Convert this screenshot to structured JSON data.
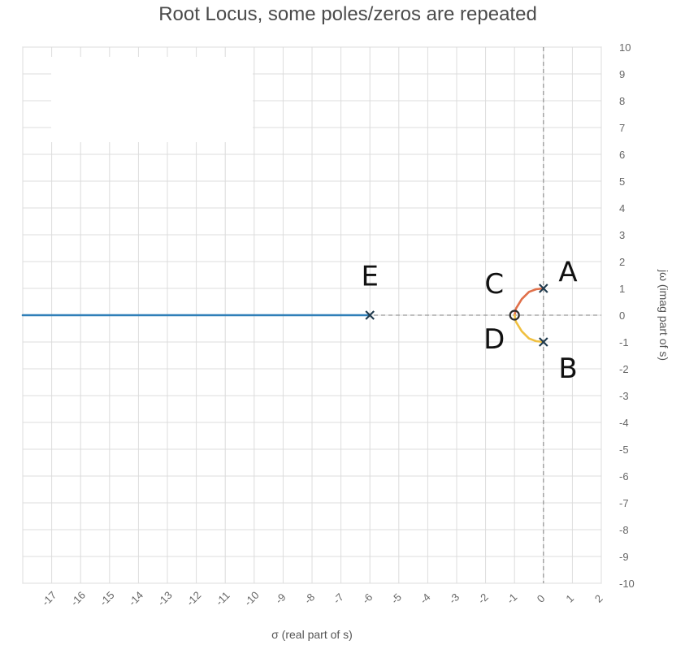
{
  "chart_data": {
    "type": "scatter",
    "title": "Root Locus, some poles/zeros are repeated",
    "xlabel": "σ (real part of s)",
    "ylabel": "jω (imag part of s)",
    "xlim": [
      -18,
      2
    ],
    "ylim": [
      -10,
      10
    ],
    "x_ticks": [
      "-17",
      "-16",
      "-15",
      "-14",
      "-13",
      "-12",
      "-11",
      "-10",
      "-9",
      "-8",
      "-7",
      "-6",
      "-5",
      "-4",
      "-3",
      "-2",
      "-1",
      "0",
      "1",
      "2"
    ],
    "y_ticks": [
      "10",
      "9",
      "8",
      "7",
      "6",
      "5",
      "4",
      "3",
      "2",
      "1",
      "0",
      "-1",
      "-2",
      "-3",
      "-4",
      "-5",
      "-6",
      "-7",
      "-8",
      "-9",
      "-10"
    ],
    "grid": true,
    "poles": [
      {
        "x": 0,
        "y": 1
      },
      {
        "x": 0,
        "y": -1
      },
      {
        "x": -6,
        "y": 0
      }
    ],
    "zeros": [
      {
        "x": -1,
        "y": 0
      }
    ],
    "branches": [
      {
        "color": "#e0704a",
        "points": [
          [
            0,
            1
          ],
          [
            -0.25,
            0.97
          ],
          [
            -0.5,
            0.87
          ],
          [
            -0.75,
            0.6
          ],
          [
            -0.95,
            0.25
          ],
          [
            -1,
            0
          ]
        ]
      },
      {
        "color": "#f0c040",
        "points": [
          [
            0,
            -1
          ],
          [
            -0.25,
            -0.97
          ],
          [
            -0.5,
            -0.87
          ],
          [
            -0.75,
            -0.6
          ],
          [
            -0.95,
            -0.25
          ],
          [
            -1,
            0
          ]
        ]
      },
      {
        "color": "#2f7fb8",
        "points": [
          [
            -6,
            0
          ],
          [
            -18,
            0
          ]
        ]
      }
    ],
    "annotations": [
      {
        "text": "A",
        "x": 0.85,
        "y": 1.55
      },
      {
        "text": "B",
        "x": 0.85,
        "y": -2.05
      },
      {
        "text": "C",
        "x": -1.7,
        "y": 1.1
      },
      {
        "text": "D",
        "x": -1.7,
        "y": -0.95
      },
      {
        "text": "E",
        "x": -6,
        "y": 1.4
      }
    ],
    "colors": {
      "grid": "#dcdcdc",
      "axis": "#999999",
      "pole": "#1f3a4d",
      "zero": "#2b2b2b"
    }
  }
}
